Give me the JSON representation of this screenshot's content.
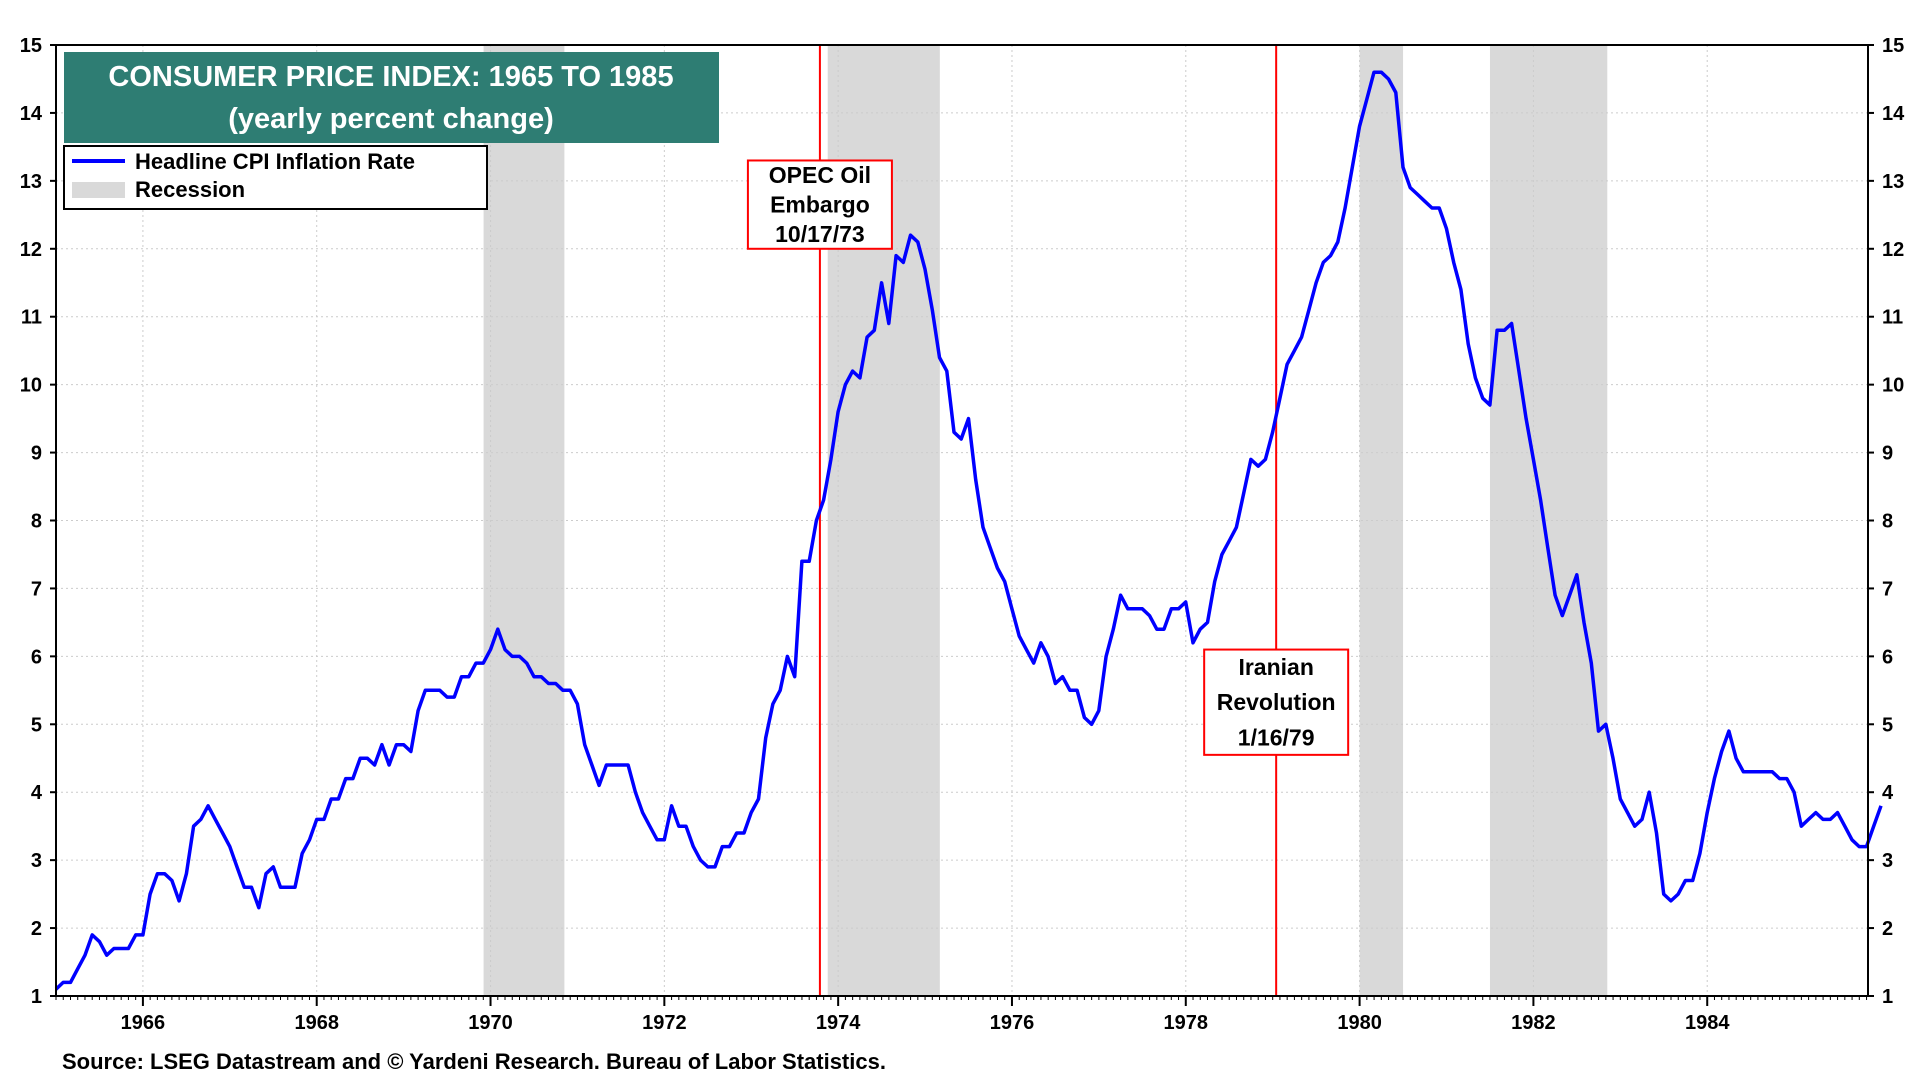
{
  "chart_data": {
    "type": "line",
    "title": "CONSUMER PRICE INDEX: 1965 TO 1985",
    "subtitle": "(yearly percent change)",
    "legend": [
      {
        "label": "Headline CPI Inflation Rate",
        "kind": "line",
        "color": "#0000ff"
      },
      {
        "label": "Recession",
        "kind": "patch",
        "color": "#d9d9d9"
      }
    ],
    "legend_position": "top-left",
    "xlim": [
      1965,
      1985.85
    ],
    "ylim": [
      1,
      15
    ],
    "x_ticks": [
      1966,
      1968,
      1970,
      1972,
      1974,
      1976,
      1978,
      1980,
      1982,
      1984
    ],
    "x_tick_labels": [
      "1966",
      "1968",
      "1970",
      "1972",
      "1974",
      "1976",
      "1978",
      "1980",
      "1982",
      "1984"
    ],
    "y_ticks": [
      1,
      2,
      3,
      4,
      5,
      6,
      7,
      8,
      9,
      10,
      11,
      12,
      13,
      14,
      15
    ],
    "y_tick_labels": [
      "1",
      "2",
      "3",
      "4",
      "5",
      "6",
      "7",
      "8",
      "9",
      "10",
      "11",
      "12",
      "13",
      "14",
      "15"
    ],
    "grid": true,
    "recessions": [
      [
        1969.92,
        1970.85
      ],
      [
        1973.88,
        1975.17
      ],
      [
        1980.0,
        1980.5
      ],
      [
        1981.5,
        1982.85
      ]
    ],
    "events": [
      {
        "x": 1973.79,
        "lines": [
          "OPEC Oil",
          "Embargo",
          "10/17/73"
        ],
        "label_y": [
          12.0,
          13.3
        ]
      },
      {
        "x": 1979.04,
        "lines": [
          "Iranian",
          "Revolution",
          "1/16/79"
        ],
        "label_y": [
          4.55,
          6.1
        ]
      }
    ],
    "series": [
      {
        "name": "Headline CPI Inflation Rate",
        "color": "#0000ff",
        "x_start": 1965.0,
        "x_step": 0.08333,
        "values": [
          1.1,
          1.2,
          1.2,
          1.4,
          1.6,
          1.9,
          1.8,
          1.6,
          1.7,
          1.7,
          1.7,
          1.9,
          1.9,
          2.5,
          2.8,
          2.8,
          2.7,
          2.4,
          2.8,
          3.5,
          3.6,
          3.8,
          3.6,
          3.4,
          3.2,
          2.9,
          2.6,
          2.6,
          2.3,
          2.8,
          2.9,
          2.6,
          2.6,
          2.6,
          3.1,
          3.3,
          3.6,
          3.6,
          3.9,
          3.9,
          4.2,
          4.2,
          4.5,
          4.5,
          4.4,
          4.7,
          4.4,
          4.7,
          4.7,
          4.6,
          5.2,
          5.5,
          5.5,
          5.5,
          5.4,
          5.4,
          5.7,
          5.7,
          5.9,
          5.9,
          6.1,
          6.4,
          6.1,
          6.0,
          6.0,
          5.9,
          5.7,
          5.7,
          5.6,
          5.6,
          5.5,
          5.5,
          5.3,
          4.7,
          4.4,
          4.1,
          4.4,
          4.4,
          4.4,
          4.4,
          4.0,
          3.7,
          3.5,
          3.3,
          3.3,
          3.8,
          3.5,
          3.5,
          3.2,
          3.0,
          2.9,
          2.9,
          3.2,
          3.2,
          3.4,
          3.4,
          3.7,
          3.9,
          4.8,
          5.3,
          5.5,
          6.0,
          5.7,
          7.4,
          7.4,
          8.0,
          8.3,
          8.9,
          9.6,
          10.0,
          10.2,
          10.1,
          10.7,
          10.8,
          11.5,
          10.9,
          11.9,
          11.8,
          12.2,
          12.1,
          11.7,
          11.1,
          10.4,
          10.2,
          9.3,
          9.2,
          9.5,
          8.6,
          7.9,
          7.6,
          7.3,
          7.1,
          6.7,
          6.3,
          6.1,
          5.9,
          6.2,
          6.0,
          5.6,
          5.7,
          5.5,
          5.5,
          5.1,
          5.0,
          5.2,
          6.0,
          6.4,
          6.9,
          6.7,
          6.7,
          6.7,
          6.6,
          6.4,
          6.4,
          6.7,
          6.7,
          6.8,
          6.2,
          6.4,
          6.5,
          7.1,
          7.5,
          7.7,
          7.9,
          8.4,
          8.9,
          8.8,
          8.9,
          9.3,
          9.8,
          10.3,
          10.5,
          10.7,
          11.1,
          11.5,
          11.8,
          11.9,
          12.1,
          12.6,
          13.2,
          13.8,
          14.2,
          14.6,
          14.6,
          14.5,
          14.3,
          13.2,
          12.9,
          12.8,
          12.7,
          12.6,
          12.6,
          12.3,
          11.8,
          11.4,
          10.6,
          10.1,
          9.8,
          9.7,
          10.8,
          10.8,
          10.9,
          10.2,
          9.5,
          8.9,
          8.3,
          7.6,
          6.9,
          6.6,
          6.9,
          7.2,
          6.5,
          5.9,
          4.9,
          5.0,
          4.5,
          3.9,
          3.7,
          3.5,
          3.6,
          4.0,
          3.4,
          2.5,
          2.4,
          2.5,
          2.7,
          2.7,
          3.1,
          3.7,
          4.2,
          4.6,
          4.9,
          4.5,
          4.3,
          4.3,
          4.3,
          4.3,
          4.3,
          4.2,
          4.2,
          4.0,
          3.5,
          3.6,
          3.7,
          3.6,
          3.6,
          3.7,
          3.5,
          3.3,
          3.2,
          3.2,
          3.5,
          3.8
        ]
      }
    ],
    "source": "Source: LSEG Datastream and © Yardeni Research. Bureau of Labor Statistics."
  }
}
